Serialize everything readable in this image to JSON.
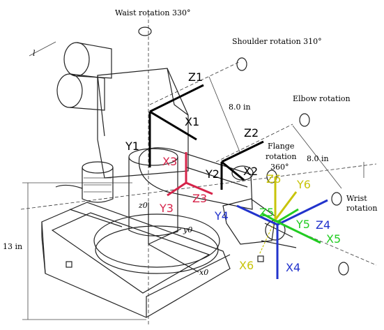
{
  "annotations": {
    "waist": "Waist rotation 330°",
    "shoulder": "Shoulder rotation 310°",
    "elbow": "Elbow rotation",
    "flange_1": "Flange",
    "flange_2": "rotation",
    "flange_3": "360°",
    "wrist_1": "Wrist",
    "wrist_2": "rotation",
    "dim_8a": "8.0 in",
    "dim_8b": "8.0 in",
    "dim_13": "13 in",
    "dim_l": "l",
    "z0": "z0",
    "y0": "y0",
    "x0": "x0"
  },
  "frames": {
    "f1": {
      "z": "Z1",
      "x": "X1",
      "y": "Y1",
      "color": "#000000"
    },
    "f2": {
      "z": "Z2",
      "x": "X2",
      "y": "Y2",
      "color": "#000000"
    },
    "f3": {
      "z": "Z3",
      "x": "X3",
      "y": "Y3",
      "color": "#d6244a"
    },
    "f4": {
      "z": "Z4",
      "x": "X4",
      "y": "Y4",
      "color": "#2233cc"
    },
    "f5": {
      "z": "Z5",
      "x": "X5",
      "y": "Y5",
      "color": "#22cc22"
    },
    "f6": {
      "z": "Z6",
      "x": "X6",
      "y": "Y6",
      "color": "#c8c40a"
    }
  }
}
